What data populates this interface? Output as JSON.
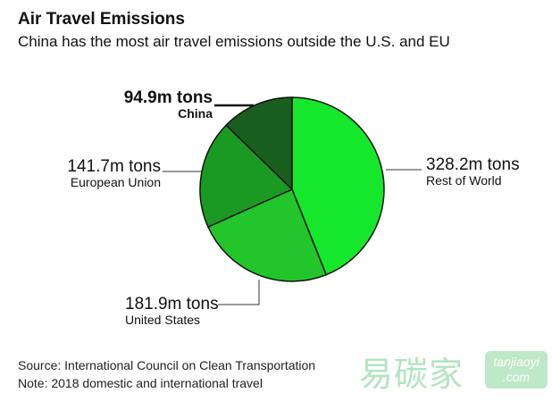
{
  "title": "Air Travel Emissions",
  "subtitle": "China has the most air travel emissions outside the U.S. and EU",
  "chart_data": {
    "type": "pie",
    "unit": "m tons",
    "slices": [
      {
        "label": "Rest of World",
        "value": 328.2,
        "display": "328.2m tons",
        "color": "#15e82a"
      },
      {
        "label": "United States",
        "value": 181.9,
        "display": "181.9m tons",
        "color": "#22c52a"
      },
      {
        "label": "European Union",
        "value": 141.7,
        "display": "141.7m tons",
        "color": "#1a9a22"
      },
      {
        "label": "China",
        "value": 94.9,
        "display": "94.9m tons",
        "color": "#1a5e1f",
        "highlighted": true
      }
    ],
    "start": "top, clockwise"
  },
  "footer": {
    "source": "Source: International Council on Clean Transportation",
    "note": "Note: 2018 domestic and international travel"
  },
  "watermark": {
    "logo": "易碳家",
    "site": "tanjiaoyi",
    "tld": ".com"
  }
}
